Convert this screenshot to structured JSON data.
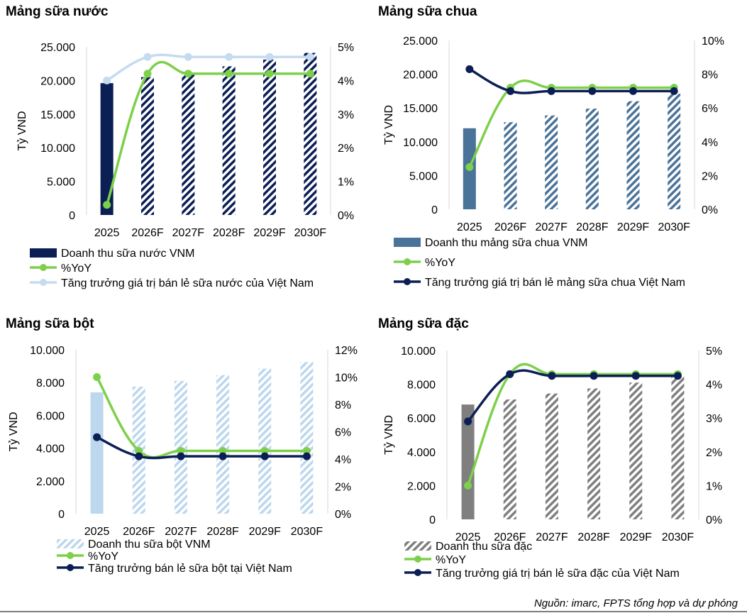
{
  "source": "Nguồn: imarc, FPTS tổng hợp và dự phóng",
  "colors": {
    "navy": "#0b1f55",
    "light_green": "#7dd04a",
    "light_blue": "#c6dbef",
    "steel_blue": "#4a7399",
    "pale_blue": "#bcd7ee",
    "gray": "#7f7f7f"
  },
  "chart_data": [
    {
      "type": "bar",
      "title": "Mảng sữa nước",
      "ylabel": "Tỷ VND",
      "categories": [
        "2025",
        "2026F",
        "2027F",
        "2028F",
        "2029F",
        "2030F"
      ],
      "ylim": [
        0,
        25000
      ],
      "y_ticks": [
        "0",
        "5.000",
        "10.000",
        "15.000",
        "20.000",
        "25.000"
      ],
      "y2lim": [
        0,
        5
      ],
      "y2_ticks": [
        "0%",
        "1%",
        "2%",
        "3%",
        "4%",
        "5%"
      ],
      "bar_style": "navy solid actual, navy striped forecast",
      "series": [
        {
          "name": "Doanh thu sữa nước VNM",
          "kind": "bar",
          "axis": "left",
          "color": "#0b1f55",
          "values": [
            19600,
            20500,
            21300,
            22100,
            23100,
            24100
          ]
        },
        {
          "name": "%YoY",
          "kind": "line",
          "axis": "right",
          "color": "#7dd04a",
          "values": [
            0.3,
            4.2,
            4.2,
            4.2,
            4.2,
            4.2
          ]
        },
        {
          "name": "Tăng trưởng giá trị bán lẻ sữa nước của Việt Nam",
          "kind": "line",
          "axis": "right",
          "color": "#c6dbef",
          "values": [
            4.0,
            4.7,
            4.7,
            4.7,
            4.7,
            4.7
          ]
        }
      ],
      "legend": "bottom"
    },
    {
      "type": "bar",
      "title": "Mảng sữa chua",
      "ylabel": "Tỷ VND",
      "categories": [
        "2025",
        "2026F",
        "2027F",
        "2028F",
        "2029F",
        "2030F"
      ],
      "ylim": [
        0,
        25000
      ],
      "y_ticks": [
        "0",
        "5.000",
        "10.000",
        "15.000",
        "20.000",
        "25.000"
      ],
      "y2lim": [
        0,
        10
      ],
      "y2_ticks": [
        "0%",
        "2%",
        "4%",
        "6%",
        "8%",
        "10%"
      ],
      "bar_style": "steel blue solid actual, steel blue striped forecast",
      "series": [
        {
          "name": "Doanh thu mảng sữa chua VNM",
          "kind": "bar",
          "axis": "left",
          "color": "#4a7399",
          "values": [
            12000,
            12900,
            13900,
            14900,
            16000,
            17100
          ]
        },
        {
          "name": "%YoY",
          "kind": "line",
          "axis": "right",
          "color": "#7dd04a",
          "values": [
            2.5,
            7.2,
            7.2,
            7.2,
            7.2,
            7.2
          ]
        },
        {
          "name": "Tăng trưởng giá trị bán lẻ mảng sữa chua Việt Nam",
          "kind": "line",
          "axis": "right",
          "color": "#0b1f55",
          "values": [
            8.3,
            7.0,
            7.0,
            7.0,
            7.0,
            7.0
          ]
        }
      ],
      "legend": "bottom"
    },
    {
      "type": "bar",
      "title": "Mảng sữa bột",
      "ylabel": "Tỷ VND",
      "categories": [
        "2025",
        "2026F",
        "2027F",
        "2028F",
        "2029F",
        "2030F"
      ],
      "ylim": [
        0,
        10000
      ],
      "y_ticks": [
        "0",
        "2.000",
        "4.000",
        "6.000",
        "8.000",
        "10.000"
      ],
      "y2lim": [
        0,
        12
      ],
      "y2_ticks": [
        "0%",
        "2%",
        "4%",
        "6%",
        "8%",
        "10%",
        "12%"
      ],
      "bar_style": "pale blue solid actual, pale blue striped forecast",
      "series": [
        {
          "name": "Doanh thu sữa bột VNM",
          "kind": "bar",
          "axis": "left",
          "color": "#bcd7ee",
          "values": [
            7400,
            7750,
            8100,
            8450,
            8850,
            9250
          ]
        },
        {
          "name": "%YoY",
          "kind": "line",
          "axis": "right",
          "color": "#7dd04a",
          "values": [
            10.0,
            4.6,
            4.6,
            4.6,
            4.6,
            4.6
          ]
        },
        {
          "name": "Tăng trưởng bán lẻ sữa bột tại Việt Nam",
          "kind": "line",
          "axis": "right",
          "color": "#0b1f55",
          "values": [
            5.6,
            4.2,
            4.2,
            4.2,
            4.2,
            4.2
          ]
        }
      ],
      "legend": "bottom"
    },
    {
      "type": "bar",
      "title": "Mảng sữa đặc",
      "ylabel": "Tỷ VND",
      "categories": [
        "2025",
        "2026F",
        "2027F",
        "2028F",
        "2029F",
        "2030F"
      ],
      "ylim": [
        0,
        10000
      ],
      "y_ticks": [
        "0",
        "2.000",
        "4.000",
        "6.000",
        "8.000",
        "10.000"
      ],
      "y2lim": [
        0,
        5
      ],
      "y2_ticks": [
        "0%",
        "1%",
        "2%",
        "3%",
        "4%",
        "5%"
      ],
      "bar_style": "gray solid actual, gray striped forecast",
      "series": [
        {
          "name": "Doanh thu sữa đặc",
          "kind": "bar",
          "axis": "left",
          "color": "#7f7f7f",
          "values": [
            6800,
            7100,
            7450,
            7750,
            8100,
            8450
          ]
        },
        {
          "name": "%YoY",
          "kind": "line",
          "axis": "right",
          "color": "#7dd04a",
          "values": [
            1.0,
            4.3,
            4.3,
            4.3,
            4.3,
            4.3
          ]
        },
        {
          "name": "Tăng trưởng giá trị bán lẻ sữa đặc của Việt Nam",
          "kind": "line",
          "axis": "right",
          "color": "#0b1f55",
          "values": [
            2.9,
            4.3,
            4.25,
            4.25,
            4.25,
            4.25
          ]
        }
      ],
      "legend": "bottom"
    }
  ]
}
